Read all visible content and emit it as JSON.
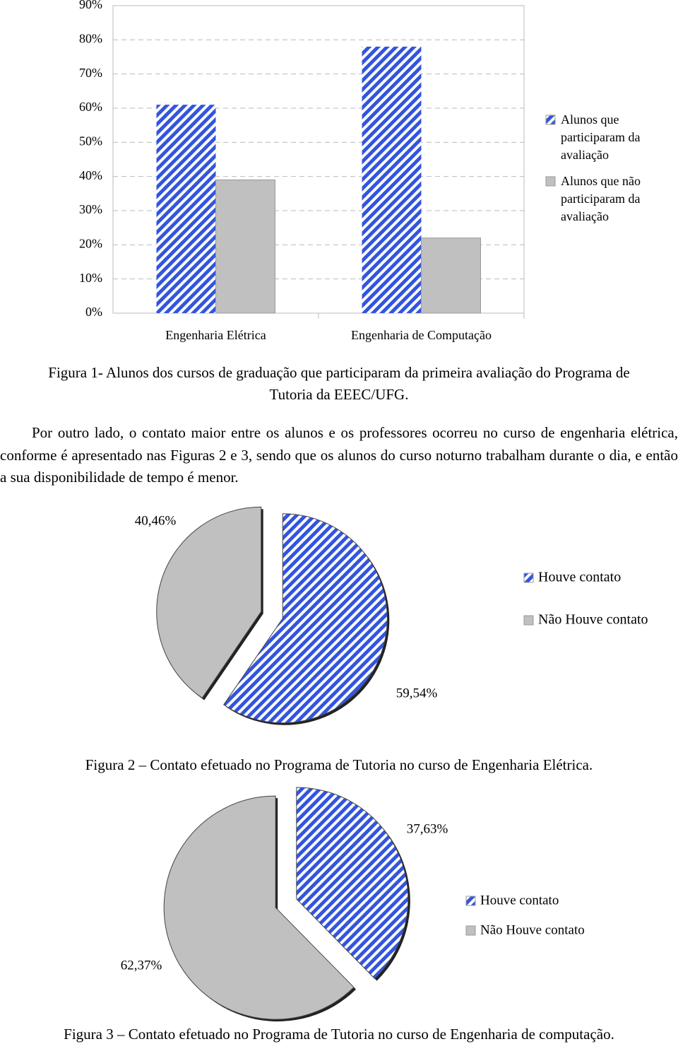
{
  "chart_data": [
    {
      "type": "bar",
      "categories": [
        "Engenharia Elétrica",
        "Engenharia de Computação"
      ],
      "series": [
        {
          "name": "Alunos que participaram da avaliação",
          "color": "#3355dd",
          "hatch": true,
          "values": [
            61,
            78
          ]
        },
        {
          "name": "Alunos que não participaram da avaliação",
          "color": "#c0c0c0",
          "hatch": false,
          "values": [
            39,
            22
          ]
        }
      ],
      "ylim": [
        0,
        90
      ],
      "yticks": [
        {
          "value": 0,
          "label": "0%"
        },
        {
          "value": 10,
          "label": "10%"
        },
        {
          "value": 20,
          "label": "20%"
        },
        {
          "value": 30,
          "label": "30%"
        },
        {
          "value": 40,
          "label": "40%"
        },
        {
          "value": 50,
          "label": "50%"
        },
        {
          "value": 60,
          "label": "60%"
        },
        {
          "value": 70,
          "label": "70%"
        },
        {
          "value": 80,
          "label": "80%"
        },
        {
          "value": 90,
          "label": "90%"
        }
      ],
      "grid": true,
      "legend": "right",
      "caption": "Figura 1- Alunos dos cursos de graduação que participaram da primeira avaliação do Programa de Tutoria da EEEC/UFG."
    },
    {
      "type": "pie",
      "categories": [
        "Houve contato",
        "Não Houve contato"
      ],
      "values": [
        59.54,
        40.46
      ],
      "value_labels": [
        "59,54%",
        "40,46%"
      ],
      "colors": [
        "#3355dd",
        "#c0c0c0"
      ],
      "hatch": [
        true,
        false
      ],
      "legend": "right",
      "caption": "Figura 2 – Contato efetuado no Programa de Tutoria no curso de Engenharia Elétrica."
    },
    {
      "type": "pie",
      "categories": [
        "Houve contato",
        "Não Houve contato"
      ],
      "values": [
        37.63,
        62.37
      ],
      "value_labels": [
        "37,63%",
        "62,37%"
      ],
      "colors": [
        "#3355dd",
        "#c0c0c0"
      ],
      "hatch": [
        true,
        false
      ],
      "legend": "right",
      "caption": "Figura 3 – Contato efetuado no Programa de Tutoria no curso de Engenharia de computação."
    }
  ],
  "body_text": "Por outro lado, o contato maior entre os alunos e os professores ocorreu no curso de engenharia elétrica, conforme é apresentado nas Figuras 2 e 3, sendo que os alunos do curso noturno trabalham durante o dia, e então a sua disponibilidade de tempo é menor."
}
